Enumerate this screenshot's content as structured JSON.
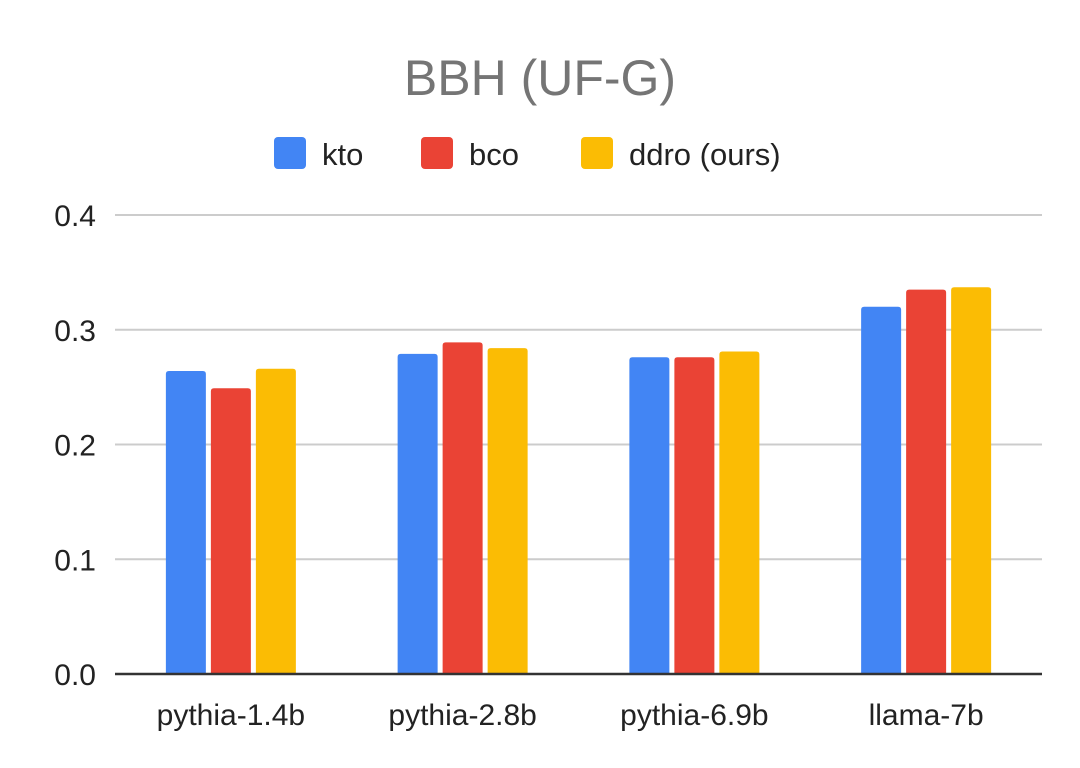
{
  "chart_data": {
    "type": "bar",
    "title": "BBH (UF-G)",
    "xlabel": "",
    "ylabel": "",
    "categories": [
      "pythia-1.4b",
      "pythia-2.8b",
      "pythia-6.9b",
      "llama-7b"
    ],
    "series": [
      {
        "name": "kto",
        "color": "#4285F4",
        "values": [
          0.264,
          0.279,
          0.276,
          0.32
        ]
      },
      {
        "name": "bco",
        "color": "#EA4335",
        "values": [
          0.249,
          0.289,
          0.276,
          0.335
        ]
      },
      {
        "name": "ddro (ours)",
        "color": "#FBBC04",
        "values": [
          0.266,
          0.284,
          0.281,
          0.337
        ]
      }
    ],
    "ylim": [
      0,
      0.4
    ],
    "yticks": [
      "0.0",
      "0.1",
      "0.2",
      "0.3",
      "0.4"
    ],
    "grid": true,
    "legend_position": "top"
  }
}
